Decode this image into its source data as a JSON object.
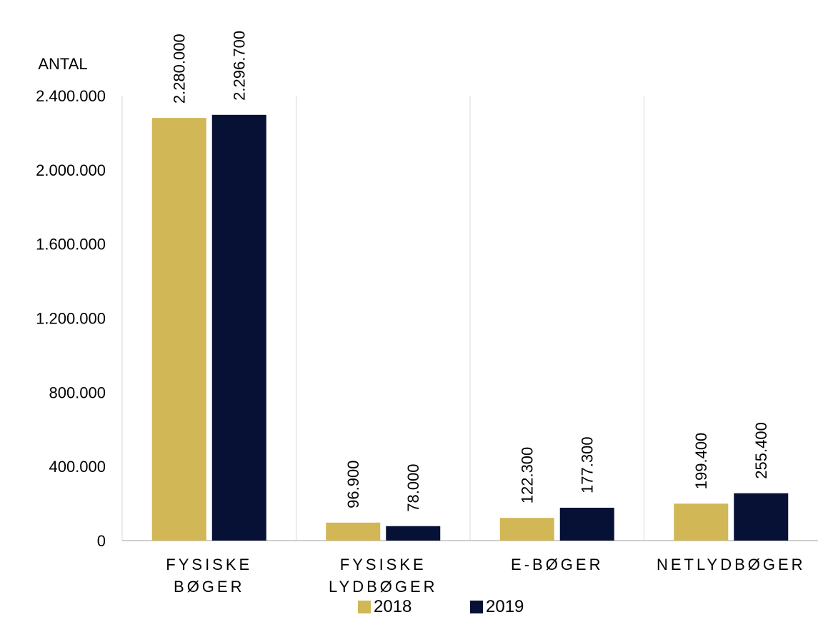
{
  "colors": {
    "s2018": "#d1b756",
    "s2019": "#071135",
    "grid": "#d9d9d9",
    "axis": "#bfbfbf"
  },
  "chart_data": {
    "type": "bar",
    "ylabel": "ANTAL",
    "ylim": [
      0,
      2400000
    ],
    "yticks": [
      "0",
      "400.000",
      "800.000",
      "1.200.000",
      "1.600.000",
      "2.000.000",
      "2.400.000"
    ],
    "categories": [
      [
        "FYSISKE",
        "BØGER"
      ],
      [
        "FYSISKE",
        "LYDBØGER"
      ],
      [
        "E-BØGER"
      ],
      [
        "NETLYDBØGER"
      ]
    ],
    "series": [
      {
        "name": "2018",
        "values": [
          2280000,
          96900,
          122300,
          199400
        ],
        "labels": [
          "2.280.000",
          "96.900",
          "122.300",
          "199.400"
        ]
      },
      {
        "name": "2019",
        "values": [
          2296700,
          78000,
          177300,
          255400
        ],
        "labels": [
          "2.296.700",
          "78.000",
          "177.300",
          "255.400"
        ]
      }
    ],
    "legend_position": "bottom",
    "grid": "vertical-separators"
  }
}
